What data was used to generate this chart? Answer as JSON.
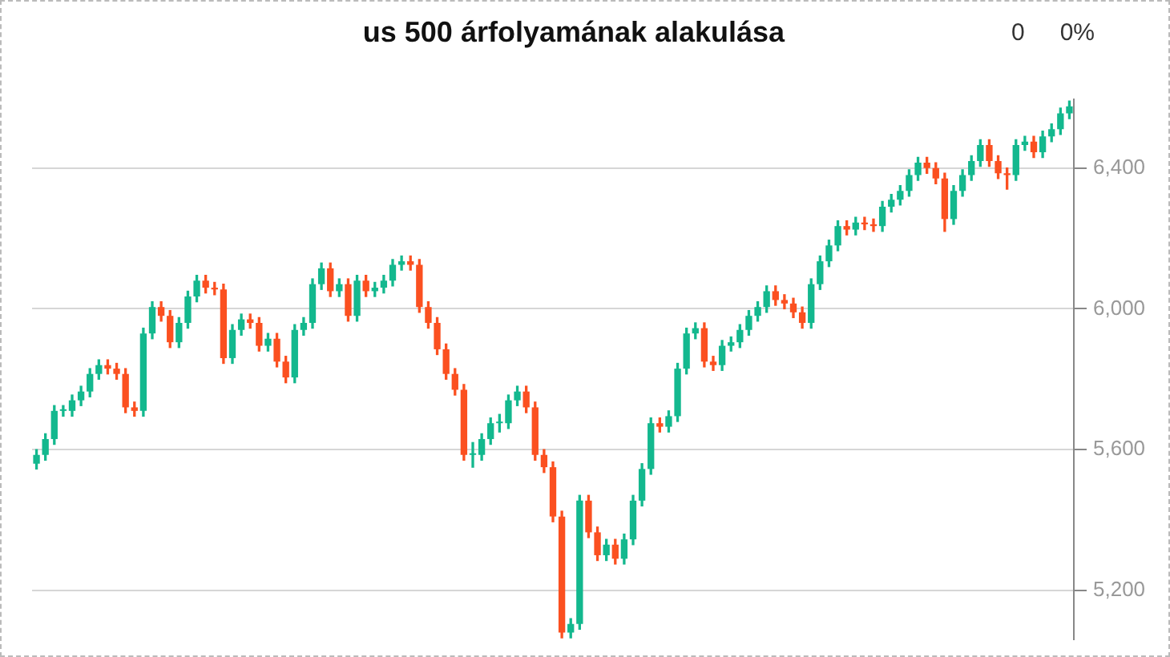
{
  "chart_data": {
    "type": "candlestick",
    "title": "us 500 árfolyamának alakulása",
    "annotations": [
      "0",
      "0%"
    ],
    "categories": [
      null,
      null,
      null,
      null,
      null,
      null,
      null,
      null,
      null,
      null,
      null,
      null,
      null,
      null,
      null,
      null,
      null,
      null,
      null,
      null,
      null,
      null,
      null,
      null,
      null,
      null,
      null,
      null,
      null,
      null,
      null,
      null,
      null,
      null,
      null,
      null,
      null,
      null,
      null,
      null,
      null,
      null,
      null,
      null,
      null,
      null,
      null,
      null,
      null,
      null,
      null,
      null,
      null,
      null,
      null,
      null,
      null,
      null,
      null,
      null,
      null,
      null,
      null,
      null,
      null,
      null,
      null,
      null,
      null,
      null,
      null,
      null,
      null,
      null,
      null,
      null,
      null,
      null,
      null,
      null,
      null,
      null,
      null,
      null,
      null,
      null,
      null,
      null,
      null,
      null,
      null,
      null,
      null,
      null,
      null,
      null,
      null,
      null,
      null,
      null,
      null,
      null,
      null,
      null,
      null,
      null,
      null,
      null,
      null,
      null,
      null,
      null,
      null,
      null,
      null,
      null,
      null
    ],
    "ohlc": [
      [
        5560,
        5600,
        5545,
        5585
      ],
      [
        5585,
        5645,
        5570,
        5630
      ],
      [
        5630,
        5725,
        5615,
        5710
      ],
      [
        5710,
        5725,
        5695,
        5710
      ],
      [
        5710,
        5755,
        5695,
        5740
      ],
      [
        5740,
        5780,
        5725,
        5765
      ],
      [
        5765,
        5830,
        5750,
        5815
      ],
      [
        5815,
        5855,
        5800,
        5840
      ],
      [
        5840,
        5855,
        5815,
        5830
      ],
      [
        5830,
        5845,
        5800,
        5815
      ],
      [
        5815,
        5830,
        5705,
        5720
      ],
      [
        5720,
        5735,
        5695,
        5710
      ],
      [
        5710,
        5945,
        5695,
        5930
      ],
      [
        5930,
        6020,
        5915,
        6005
      ],
      [
        6005,
        6020,
        5965,
        5980
      ],
      [
        5980,
        5995,
        5890,
        5905
      ],
      [
        5905,
        5975,
        5890,
        5960
      ],
      [
        5960,
        6050,
        5945,
        6035
      ],
      [
        6035,
        6095,
        6020,
        6080
      ],
      [
        6080,
        6095,
        6045,
        6060
      ],
      [
        6060,
        6075,
        6040,
        6055
      ],
      [
        6055,
        6070,
        5845,
        5860
      ],
      [
        5860,
        5955,
        5845,
        5940
      ],
      [
        5940,
        5985,
        5925,
        5970
      ],
      [
        5970,
        5985,
        5945,
        5960
      ],
      [
        5960,
        5975,
        5880,
        5895
      ],
      [
        5895,
        5930,
        5880,
        5915
      ],
      [
        5915,
        5930,
        5835,
        5850
      ],
      [
        5850,
        5865,
        5790,
        5805
      ],
      [
        5805,
        5955,
        5790,
        5940
      ],
      [
        5940,
        5975,
        5925,
        5960
      ],
      [
        5960,
        6085,
        5945,
        6070
      ],
      [
        6070,
        6130,
        6055,
        6115
      ],
      [
        6115,
        6130,
        6035,
        6050
      ],
      [
        6050,
        6085,
        6035,
        6070
      ],
      [
        6070,
        6085,
        5965,
        5980
      ],
      [
        5980,
        6095,
        5965,
        6080
      ],
      [
        6080,
        6095,
        6035,
        6050
      ],
      [
        6050,
        6075,
        6035,
        6060
      ],
      [
        6060,
        6095,
        6045,
        6080
      ],
      [
        6080,
        6140,
        6065,
        6125
      ],
      [
        6125,
        6150,
        6110,
        6135
      ],
      [
        6135,
        6150,
        6110,
        6125
      ],
      [
        6125,
        6140,
        5990,
        6005
      ],
      [
        6005,
        6020,
        5945,
        5960
      ],
      [
        5960,
        5975,
        5870,
        5885
      ],
      [
        5885,
        5900,
        5800,
        5815
      ],
      [
        5815,
        5830,
        5755,
        5770
      ],
      [
        5770,
        5785,
        5570,
        5585
      ],
      [
        5585,
        5620,
        5550,
        5585
      ],
      [
        5585,
        5645,
        5570,
        5630
      ],
      [
        5630,
        5690,
        5615,
        5675
      ],
      [
        5675,
        5700,
        5650,
        5675
      ],
      [
        5675,
        5755,
        5660,
        5740
      ],
      [
        5740,
        5780,
        5725,
        5765
      ],
      [
        5765,
        5780,
        5705,
        5720
      ],
      [
        5720,
        5735,
        5570,
        5585
      ],
      [
        5585,
        5600,
        5535,
        5550
      ],
      [
        5550,
        5565,
        5395,
        5410
      ],
      [
        5410,
        5425,
        5065,
        5080
      ],
      [
        5080,
        5120,
        5065,
        5105
      ],
      [
        5105,
        5470,
        5090,
        5455
      ],
      [
        5455,
        5470,
        5350,
        5365
      ],
      [
        5365,
        5380,
        5285,
        5300
      ],
      [
        5300,
        5345,
        5285,
        5330
      ],
      [
        5330,
        5345,
        5275,
        5290
      ],
      [
        5290,
        5360,
        5275,
        5345
      ],
      [
        5345,
        5470,
        5330,
        5455
      ],
      [
        5455,
        5560,
        5440,
        5545
      ],
      [
        5545,
        5690,
        5530,
        5675
      ],
      [
        5675,
        5690,
        5650,
        5665
      ],
      [
        5665,
        5710,
        5650,
        5695
      ],
      [
        5695,
        5845,
        5680,
        5830
      ],
      [
        5830,
        5945,
        5815,
        5930
      ],
      [
        5930,
        5960,
        5915,
        5945
      ],
      [
        5945,
        5960,
        5835,
        5850
      ],
      [
        5850,
        5865,
        5825,
        5840
      ],
      [
        5840,
        5910,
        5825,
        5895
      ],
      [
        5895,
        5920,
        5880,
        5905
      ],
      [
        5905,
        5955,
        5890,
        5940
      ],
      [
        5940,
        5995,
        5925,
        5980
      ],
      [
        5980,
        6020,
        5965,
        6005
      ],
      [
        6005,
        6065,
        5990,
        6050
      ],
      [
        6050,
        6065,
        6010,
        6025
      ],
      [
        6025,
        6040,
        6000,
        6015
      ],
      [
        6015,
        6030,
        5975,
        5990
      ],
      [
        5990,
        6005,
        5945,
        5960
      ],
      [
        5960,
        6085,
        5945,
        6070
      ],
      [
        6070,
        6150,
        6055,
        6135
      ],
      [
        6135,
        6195,
        6120,
        6180
      ],
      [
        6180,
        6250,
        6165,
        6235
      ],
      [
        6235,
        6250,
        6210,
        6225
      ],
      [
        6225,
        6260,
        6210,
        6245
      ],
      [
        6245,
        6260,
        6225,
        6240
      ],
      [
        6240,
        6255,
        6220,
        6235
      ],
      [
        6235,
        6305,
        6220,
        6290
      ],
      [
        6290,
        6325,
        6275,
        6310
      ],
      [
        6310,
        6350,
        6295,
        6335
      ],
      [
        6335,
        6395,
        6320,
        6380
      ],
      [
        6380,
        6430,
        6365,
        6415
      ],
      [
        6415,
        6430,
        6385,
        6400
      ],
      [
        6400,
        6415,
        6355,
        6370
      ],
      [
        6370,
        6385,
        6220,
        6255
      ],
      [
        6255,
        6350,
        6240,
        6335
      ],
      [
        6335,
        6395,
        6320,
        6380
      ],
      [
        6380,
        6435,
        6365,
        6420
      ],
      [
        6420,
        6480,
        6405,
        6465
      ],
      [
        6465,
        6480,
        6405,
        6420
      ],
      [
        6420,
        6435,
        6370,
        6385
      ],
      [
        6385,
        6400,
        6340,
        6380
      ],
      [
        6380,
        6480,
        6365,
        6465
      ],
      [
        6465,
        6490,
        6450,
        6475
      ],
      [
        6475,
        6490,
        6430,
        6445
      ],
      [
        6445,
        6505,
        6430,
        6490
      ],
      [
        6490,
        6525,
        6475,
        6510
      ],
      [
        6510,
        6570,
        6495,
        6555
      ],
      [
        6555,
        6590,
        6540,
        6575
      ]
    ],
    "ylim": [
      5060,
      6595
    ],
    "yticks": [
      {
        "value": 5200,
        "label": "5,200"
      },
      {
        "value": 5600,
        "label": "5,600"
      },
      {
        "value": 6000,
        "label": "6,000"
      },
      {
        "value": 6400,
        "label": "6,400"
      }
    ],
    "grid": "y",
    "tick_labels": "y",
    "legend": false
  }
}
